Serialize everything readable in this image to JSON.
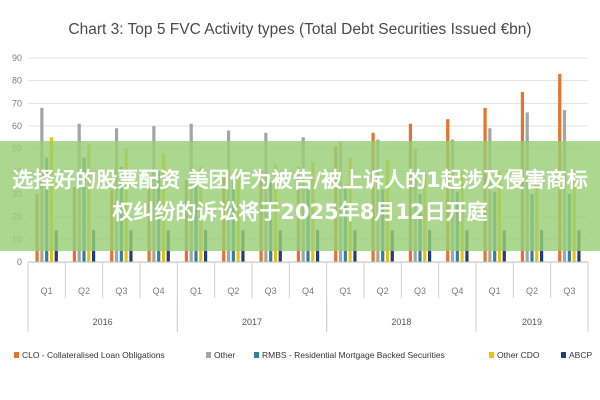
{
  "chart_data": {
    "type": "bar",
    "title": "Chart 3: Top 5 FVC Activity types (Total Debt Securities Issued €bn)",
    "ylim": [
      0,
      90
    ],
    "yticks": [
      0,
      10,
      20,
      30,
      40,
      50,
      60,
      70,
      80,
      90
    ],
    "grid": true,
    "legend_position": "bottom",
    "categories": [
      "Q1",
      "Q2",
      "Q3",
      "Q4",
      "Q1",
      "Q2",
      "Q3",
      "Q4",
      "Q1",
      "Q2",
      "Q3",
      "Q4",
      "Q1",
      "Q2",
      "Q3"
    ],
    "years": [
      {
        "label": "2016",
        "start": 0,
        "count": 4
      },
      {
        "label": "2017",
        "start": 4,
        "count": 4
      },
      {
        "label": "2018",
        "start": 8,
        "count": 4
      },
      {
        "label": "2019",
        "start": 12,
        "count": 3
      }
    ],
    "series": [
      {
        "name": "CLO - Collateralised Loan Obligations",
        "color": "#e8732a",
        "values": [
          30,
          33,
          32,
          33,
          36,
          38,
          40,
          42,
          51,
          57,
          61,
          63,
          68,
          75,
          83
        ]
      },
      {
        "name": "Other",
        "color": "#a5a5a5",
        "values": [
          68,
          61,
          59,
          60,
          61,
          58,
          57,
          55,
          53,
          54,
          50,
          54,
          59,
          66,
          67
        ]
      },
      {
        "name": "RMBS - Residential Mortgage Backed Securities",
        "color": "#2f7f9e",
        "values": [
          46,
          46,
          42,
          40,
          38,
          36,
          35,
          34,
          33,
          32,
          30,
          31,
          31,
          30,
          30
        ]
      },
      {
        "name": "Other CDO",
        "color": "#f2c200",
        "values": [
          55,
          52,
          50,
          48,
          42,
          40,
          43,
          44,
          46,
          45,
          39,
          40,
          40,
          39,
          39
        ]
      },
      {
        "name": "ABCP",
        "color": "#1f3f7a",
        "values": [
          14,
          14,
          14,
          14,
          14,
          14,
          14,
          14,
          14,
          14,
          14,
          14,
          14,
          14,
          14
        ]
      }
    ]
  },
  "overlay": {
    "text": "选择好的股票配资 美团作为被告/被上诉人的1起涉及侵害商标权纠纷的诉讼将于2025年8月12日开庭"
  }
}
